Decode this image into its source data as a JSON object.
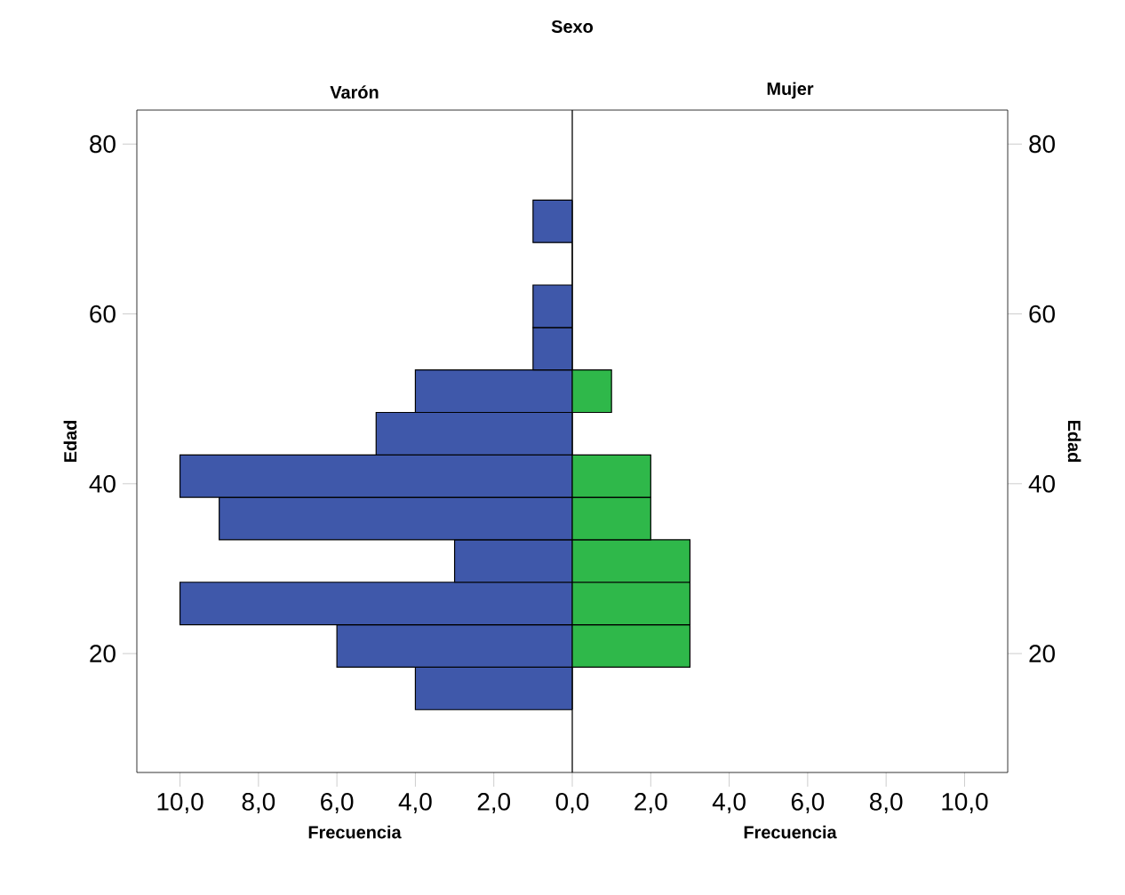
{
  "chart_data": [
    {
      "type": "histogram",
      "orientation": "horizontal",
      "title": "Sexo",
      "subtitle": "Varón",
      "xlabel": "Frecuencia",
      "ylabel": "Edad",
      "color": "#3f58aa",
      "bins": [
        13.4,
        18.4,
        23.4,
        28.4,
        33.4,
        38.4,
        43.4,
        48.4,
        53.4,
        58.4,
        63.4,
        68.4,
        73.4
      ],
      "values": [
        4,
        6,
        10,
        3,
        9,
        10,
        5,
        4,
        1,
        1,
        0,
        1
      ],
      "xlim": [
        11.1,
        0
      ],
      "ylim": [
        6,
        84
      ],
      "xticks": [
        {
          "value": 10,
          "label": "10,0"
        },
        {
          "value": 8,
          "label": "8,0"
        },
        {
          "value": 6,
          "label": "6,0"
        },
        {
          "value": 4,
          "label": "4,0"
        },
        {
          "value": 2,
          "label": "2,0"
        },
        {
          "value": 0,
          "label": "0,0"
        }
      ],
      "yticks": [
        20,
        40,
        60,
        80
      ]
    },
    {
      "type": "histogram",
      "orientation": "horizontal",
      "subtitle": "Mujer",
      "xlabel": "Frecuencia",
      "ylabel": "Edad",
      "color": "#2fb84a",
      "bins": [
        13.4,
        18.4,
        23.4,
        28.4,
        33.4,
        38.4,
        43.4,
        48.4,
        53.4,
        58.4,
        63.4,
        68.4,
        73.4
      ],
      "values": [
        0,
        3,
        3,
        3,
        2,
        2,
        0,
        1,
        0,
        0,
        0,
        0
      ],
      "xlim": [
        0,
        11.1
      ],
      "ylim": [
        6,
        84
      ],
      "xticks": [
        {
          "value": 2,
          "label": "2,0"
        },
        {
          "value": 4,
          "label": "4,0"
        },
        {
          "value": 6,
          "label": "6,0"
        },
        {
          "value": 8,
          "label": "8,0"
        },
        {
          "value": 10,
          "label": "10,0"
        }
      ],
      "yticks": [
        20,
        40,
        60,
        80
      ]
    }
  ]
}
